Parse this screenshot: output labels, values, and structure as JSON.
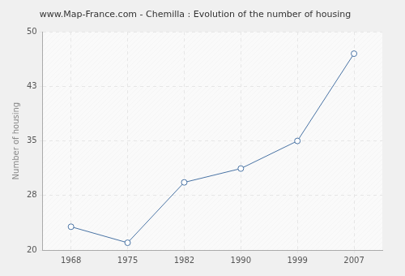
{
  "chart_data": {
    "type": "line",
    "title": "www.Map-France.com - Chemilla : Evolution of the number of housing",
    "y_label": "Number of housing",
    "categories": [
      "1968",
      "1975",
      "1982",
      "1990",
      "1999",
      "2007"
    ],
    "values": [
      23.2,
      21,
      29.3,
      31.2,
      35,
      47
    ],
    "color": "#4a74a5",
    "marker": "circle",
    "ylim": [
      20,
      50
    ],
    "yticks": [
      20,
      {
        "value": 27.5,
        "label": "28"
      },
      35,
      {
        "value": 42.5,
        "label": "43"
      },
      50
    ],
    "grid": true
  }
}
